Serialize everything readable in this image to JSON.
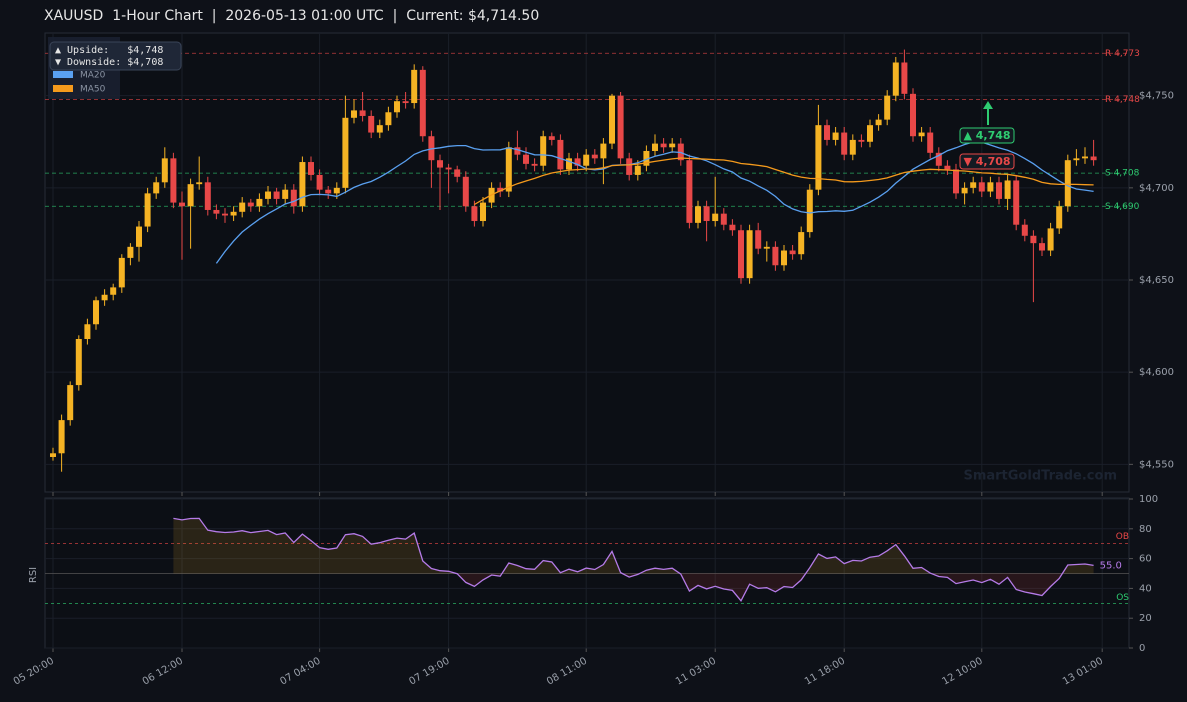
{
  "chart_data": {
    "type": "candlestick",
    "title": "XAUUSD  1-Hour Chart  |  2026-05-13 01:00 UTC  |  Current: $4,714.50",
    "up_color": "#f5b324",
    "down_color": "#e84848",
    "candles": [
      [
        4554,
        4559,
        4552,
        4556
      ],
      [
        4556,
        4577,
        4546,
        4574
      ],
      [
        4574,
        4595,
        4571,
        4593
      ],
      [
        4593,
        4620,
        4590,
        4618
      ],
      [
        4618,
        4629,
        4615,
        4626
      ],
      [
        4626,
        4641,
        4623,
        4639
      ],
      [
        4639,
        4645,
        4636,
        4642
      ],
      [
        4642,
        4648,
        4639,
        4646
      ],
      [
        4646,
        4664,
        4643,
        4662
      ],
      [
        4662,
        4670,
        4658,
        4668
      ],
      [
        4668,
        4682,
        4660,
        4679
      ],
      [
        4679,
        4700,
        4676,
        4697
      ],
      [
        4697,
        4706,
        4694,
        4703
      ],
      [
        4703,
        4722,
        4700,
        4716
      ],
      [
        4716,
        4719,
        4689,
        4692
      ],
      [
        4692,
        4698,
        4661,
        4690
      ],
      [
        4690,
        4705,
        4667,
        4702
      ],
      [
        4702,
        4717,
        4699,
        4703
      ],
      [
        4703,
        4706,
        4685,
        4688
      ],
      [
        4688,
        4691,
        4683,
        4686
      ],
      [
        4686,
        4689,
        4681,
        4685
      ],
      [
        4685,
        4690,
        4682,
        4687
      ],
      [
        4687,
        4695,
        4684,
        4692
      ],
      [
        4692,
        4694,
        4687,
        4690
      ],
      [
        4690,
        4697,
        4687,
        4694
      ],
      [
        4694,
        4701,
        4691,
        4698
      ],
      [
        4698,
        4700,
        4691,
        4694
      ],
      [
        4694,
        4702,
        4691,
        4699
      ],
      [
        4699,
        4702,
        4686,
        4690
      ],
      [
        4690,
        4717,
        4687,
        4714
      ],
      [
        4714,
        4717,
        4704,
        4707
      ],
      [
        4707,
        4710,
        4696,
        4699
      ],
      [
        4699,
        4701,
        4694,
        4697
      ],
      [
        4697,
        4703,
        4694,
        4700
      ],
      [
        4700,
        4750,
        4697,
        4738
      ],
      [
        4738,
        4748,
        4735,
        4742
      ],
      [
        4742,
        4752,
        4736,
        4739
      ],
      [
        4739,
        4742,
        4727,
        4730
      ],
      [
        4730,
        4737,
        4727,
        4734
      ],
      [
        4734,
        4744,
        4731,
        4741
      ],
      [
        4741,
        4750,
        4738,
        4747
      ],
      [
        4747,
        4752,
        4743,
        4746
      ],
      [
        4746,
        4767,
        4743,
        4764
      ],
      [
        4764,
        4766,
        4725,
        4728
      ],
      [
        4728,
        4731,
        4700,
        4715
      ],
      [
        4715,
        4718,
        4688,
        4711
      ],
      [
        4711,
        4713,
        4697,
        4710
      ],
      [
        4710,
        4712,
        4703,
        4706
      ],
      [
        4706,
        4709,
        4687,
        4690
      ],
      [
        4690,
        4693,
        4679,
        4682
      ],
      [
        4682,
        4695,
        4679,
        4692
      ],
      [
        4692,
        4703,
        4689,
        4700
      ],
      [
        4700,
        4703,
        4695,
        4698
      ],
      [
        4698,
        4725,
        4695,
        4722
      ],
      [
        4722,
        4731,
        4715,
        4718
      ],
      [
        4718,
        4722,
        4710,
        4713
      ],
      [
        4713,
        4716,
        4709,
        4712
      ],
      [
        4712,
        4731,
        4709,
        4728
      ],
      [
        4728,
        4730,
        4723,
        4726
      ],
      [
        4726,
        4729,
        4707,
        4710
      ],
      [
        4710,
        4719,
        4707,
        4716
      ],
      [
        4716,
        4719,
        4709,
        4712
      ],
      [
        4712,
        4721,
        4709,
        4718
      ],
      [
        4718,
        4721,
        4713,
        4716
      ],
      [
        4716,
        4727,
        4702,
        4724
      ],
      [
        4724,
        4751,
        4721,
        4750
      ],
      [
        4750,
        4752,
        4713,
        4716
      ],
      [
        4716,
        4719,
        4704,
        4707
      ],
      [
        4707,
        4715,
        4704,
        4712
      ],
      [
        4712,
        4723,
        4709,
        4720
      ],
      [
        4720,
        4729,
        4717,
        4724
      ],
      [
        4724,
        4727,
        4719,
        4722
      ],
      [
        4722,
        4727,
        4719,
        4724
      ],
      [
        4724,
        4727,
        4712,
        4715
      ],
      [
        4715,
        4718,
        4678,
        4681
      ],
      [
        4681,
        4693,
        4678,
        4690
      ],
      [
        4690,
        4693,
        4671,
        4682
      ],
      [
        4682,
        4706,
        4679,
        4686
      ],
      [
        4686,
        4689,
        4677,
        4680
      ],
      [
        4680,
        4683,
        4674,
        4677
      ],
      [
        4677,
        4680,
        4648,
        4651
      ],
      [
        4651,
        4680,
        4648,
        4677
      ],
      [
        4677,
        4681,
        4664,
        4667
      ],
      [
        4667,
        4671,
        4660,
        4668
      ],
      [
        4668,
        4671,
        4655,
        4658
      ],
      [
        4658,
        4669,
        4655,
        4666
      ],
      [
        4666,
        4669,
        4661,
        4664
      ],
      [
        4664,
        4679,
        4661,
        4676
      ],
      [
        4676,
        4702,
        4673,
        4699
      ],
      [
        4699,
        4745,
        4696,
        4734
      ],
      [
        4734,
        4737,
        4723,
        4726
      ],
      [
        4726,
        4733,
        4723,
        4730
      ],
      [
        4730,
        4733,
        4715,
        4718
      ],
      [
        4718,
        4729,
        4715,
        4726
      ],
      [
        4726,
        4729,
        4722,
        4725
      ],
      [
        4725,
        4737,
        4722,
        4734
      ],
      [
        4734,
        4740,
        4731,
        4737
      ],
      [
        4737,
        4753,
        4734,
        4750
      ],
      [
        4750,
        4771,
        4747,
        4768
      ],
      [
        4768,
        4775,
        4748,
        4751
      ],
      [
        4751,
        4754,
        4725,
        4728
      ],
      [
        4728,
        4733,
        4725,
        4730
      ],
      [
        4730,
        4733,
        4716,
        4719
      ],
      [
        4719,
        4722,
        4709,
        4712
      ],
      [
        4712,
        4715,
        4707,
        4710
      ],
      [
        4710,
        4713,
        4694,
        4697
      ],
      [
        4697,
        4703,
        4691,
        4700
      ],
      [
        4700,
        4706,
        4697,
        4703
      ],
      [
        4703,
        4706,
        4695,
        4698
      ],
      [
        4698,
        4706,
        4695,
        4703
      ],
      [
        4703,
        4706,
        4691,
        4694
      ],
      [
        4694,
        4707,
        4688,
        4704
      ],
      [
        4704,
        4707,
        4677,
        4680
      ],
      [
        4680,
        4683,
        4671,
        4674
      ],
      [
        4674,
        4677,
        4638,
        4670
      ],
      [
        4670,
        4673,
        4663,
        4666
      ],
      [
        4666,
        4681,
        4663,
        4678
      ],
      [
        4678,
        4693,
        4675,
        4690
      ],
      [
        4690,
        4718,
        4687,
        4715
      ],
      [
        4715,
        4721,
        4712,
        4716
      ],
      [
        4716,
        4722,
        4713,
        4717
      ],
      [
        4717,
        4726,
        4712,
        4715
      ]
    ],
    "moving_averages": [
      {
        "name": "MA20",
        "period": 20,
        "color": "#5aa0f0"
      },
      {
        "name": "MA50",
        "period": 50,
        "color": "#f59a1c"
      }
    ],
    "ylim": [
      4535,
      4784
    ],
    "yticks": [
      {
        "value": 4550,
        "label": "$4,550"
      },
      {
        "value": 4600,
        "label": "$4,600"
      },
      {
        "value": 4650,
        "label": "$4,650"
      },
      {
        "value": 4700,
        "label": "$4,700"
      },
      {
        "value": 4750,
        "label": "$4,750"
      }
    ],
    "xticks": [
      {
        "value": 0,
        "label": "05 20:00"
      },
      {
        "value": 15,
        "label": "06 12:00"
      },
      {
        "value": 31,
        "label": "07 04:00"
      },
      {
        "value": 46,
        "label": "07 19:00"
      },
      {
        "value": 62,
        "label": "08 11:00"
      },
      {
        "value": 77,
        "label": "11 03:00"
      },
      {
        "value": 92,
        "label": "11 18:00"
      },
      {
        "value": 108,
        "label": "12 10:00"
      },
      {
        "value": 122,
        "label": "13 01:00"
      }
    ],
    "grid": true,
    "levels": [
      {
        "value": 4773,
        "label": "R 4,773",
        "color": "#e84848"
      },
      {
        "value": 4748,
        "label": "R 4,748",
        "color": "#e84848"
      },
      {
        "value": 4708,
        "label": "S 4,708",
        "color": "#2ecc71"
      },
      {
        "value": 4690,
        "label": "S 4,690",
        "color": "#2ecc71"
      }
    ],
    "annotations": [
      {
        "text": "▲ 4,748",
        "color": "#2ecc71"
      },
      {
        "text": "▼ 4,708",
        "color": "#e84848"
      }
    ],
    "info_box": [
      "▲ Upside:   $4,748",
      "▼ Downside: $4,708"
    ],
    "watermark": "SmartGoldTrade.com",
    "rsi": {
      "label": "RSI",
      "period": 14,
      "color": "#b57be8",
      "ylim": [
        0,
        100
      ],
      "yticks": [
        0,
        20,
        40,
        60,
        80,
        100
      ],
      "overbought": 70,
      "oversold": 30,
      "mid": 50,
      "ob_label": "OB",
      "os_label": "OS",
      "last_label": "55.0"
    }
  }
}
